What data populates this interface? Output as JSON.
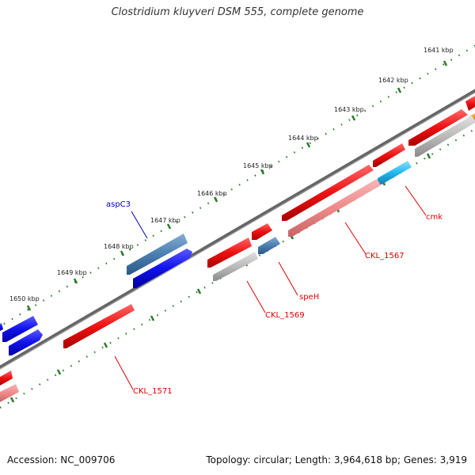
{
  "map": {
    "title": "Clostridium kluyveri DSM 555, complete genome",
    "accession": "Accession: NC_009706",
    "summary": "Topology: circular; Length: 3,964,618 bp; Genes: 3,919",
    "colors": {
      "backbone": "#777777",
      "tick": "#2a7a2a",
      "gene_red": "#ee1111",
      "gene_pink": "#f08a8a",
      "gene_gray": "#bbbbbb",
      "gene_blue": "#1111ee",
      "gene_steel": "#4a7fb0",
      "gene_cyan": "#22b8ee",
      "gene_orange": "#ee8a11",
      "label_red": "#dd0000",
      "label_blue": "#0000cc"
    }
  },
  "kbp_ticks": [
    {
      "label": "1641 kbp"
    },
    {
      "label": "1642 kbp"
    },
    {
      "label": "1643 kbp"
    },
    {
      "label": "1644 kbp"
    },
    {
      "label": "1645 kbp"
    },
    {
      "label": "1646 kbp"
    },
    {
      "label": "1647 kbp"
    },
    {
      "label": "1648 kbp"
    },
    {
      "label": "1649 kbp"
    },
    {
      "label": "1650 kbp"
    }
  ],
  "genes": [
    {
      "name": "aspC3",
      "color": "label_blue"
    },
    {
      "name": "cmk",
      "color": "label_red"
    },
    {
      "name": "CKL_1567",
      "color": "label_red"
    },
    {
      "name": "speH",
      "color": "label_red"
    },
    {
      "name": "CKL_1569",
      "color": "label_red"
    },
    {
      "name": "CKL_1571",
      "color": "label_red"
    }
  ]
}
